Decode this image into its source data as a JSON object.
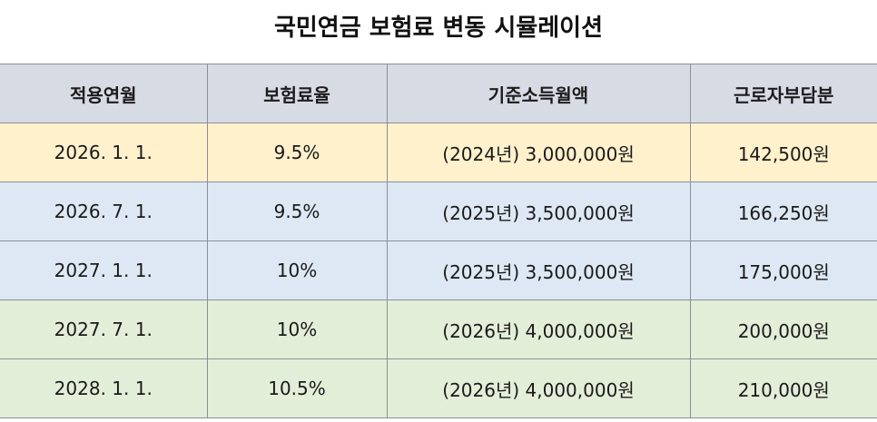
{
  "title": "국민연금 보험료 변동 시뮬레이션",
  "colors": {
    "header_bg": "#d6dbe4",
    "row_yellow": "#fff1cc",
    "row_blue": "#dde8f4",
    "row_green": "#e3eed9",
    "border": "#8a8f98"
  },
  "table": {
    "headers": [
      "적용연월",
      "보험료율",
      "기준소득월액",
      "근로자부담분"
    ],
    "rows": [
      {
        "cells": [
          "2026. 1. 1.",
          "9.5%",
          "(2024년) 3,000,000원",
          "142,500원"
        ],
        "color": "#fff1cc"
      },
      {
        "cells": [
          "2026. 7. 1.",
          "9.5%",
          "(2025년) 3,500,000원",
          "166,250원"
        ],
        "color": "#dde8f4"
      },
      {
        "cells": [
          "2027. 1. 1.",
          "10%",
          "(2025년) 3,500,000원",
          "175,000원"
        ],
        "color": "#dde8f4"
      },
      {
        "cells": [
          "2027. 7. 1.",
          "10%",
          "(2026년) 4,000,000원",
          "200,000원"
        ],
        "color": "#e3eed9"
      },
      {
        "cells": [
          "2028. 1. 1.",
          "10.5%",
          "(2026년) 4,000,000원",
          "210,000원"
        ],
        "color": "#e3eed9"
      }
    ]
  }
}
